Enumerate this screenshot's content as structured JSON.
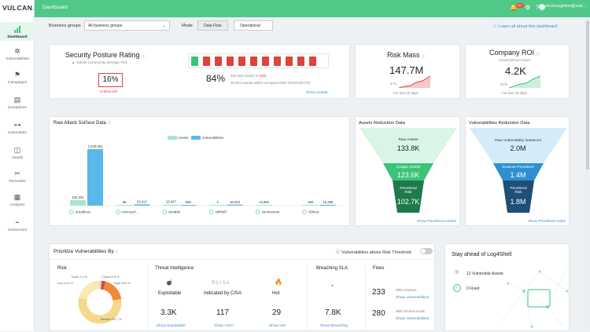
{
  "app": {
    "logo_main": "VULCAN",
    "logo_dot": ".",
    "page": "Dashboard",
    "user": "kevin.broughton@vulc...",
    "notif_count": "99+"
  },
  "sidebar": {
    "items": [
      {
        "label": "Dashboard",
        "icon": "bar-chart-icon"
      },
      {
        "label": "Vulnerabilities",
        "icon": "bug-icon"
      },
      {
        "label": "Campaigns",
        "icon": "flag-icon"
      },
      {
        "label": "Exceptions",
        "icon": "clipboard-icon"
      },
      {
        "label": "Automation",
        "icon": "flow-icon"
      },
      {
        "label": "Assets",
        "icon": "box-icon"
      },
      {
        "label": "Remedies",
        "icon": "tools-icon"
      },
      {
        "label": "Analytics",
        "icon": "document-chart-icon"
      },
      {
        "label": "Connectors",
        "icon": "plug-icon"
      }
    ]
  },
  "filters": {
    "business_groups_label": "Business groups",
    "business_groups_value": "All business groups",
    "mode_label": "Mode",
    "mode_options": [
      "Data Flow",
      "Operational"
    ],
    "learn_link": "Learn all about this dashboard"
  },
  "posture": {
    "title": "Security Posture Rating",
    "community": "Vulcan Community average 76%",
    "score": "16%",
    "score_label": "Critical risk",
    "percent": "84%",
    "at_risk": "102,683 Assets in",
    "at_risk_tag": "Risk",
    "accepted": "20,924 Assets within Accepted Risk Threshold (70)",
    "show_assets": "Show Assets"
  },
  "risk_mass": {
    "title": "Risk Mass",
    "value": "147.7M",
    "delta": "5 %",
    "period": "For last 30 days"
  },
  "roi": {
    "title": "Company ROI",
    "subtitle": "Saved person hours",
    "value": "4.2K",
    "delta": "67%",
    "period": "For last 30 days"
  },
  "chart_title": "Raw Attack Surface Data",
  "chart_data": {
    "type": "bar",
    "categories": [
      "tenablesc",
      "microsof...",
      "tenable",
      "shiftleft",
      "servicenow",
      "Others"
    ],
    "series": [
      {
        "name": "Assets",
        "color": "#a8e6c8",
        "values": [
          102231,
          58,
          18347,
          3,
          12862,
          600
        ]
      },
      {
        "name": "Vulnerabilities",
        "color": "#5ab9ea",
        "values": [
          1043004,
          23413,
          665,
          18043,
          0,
          16368
        ]
      }
    ],
    "value_labels": {
      "Assets": [
        "102,231",
        "58",
        "18,347",
        "3",
        "12,862",
        "600"
      ],
      "Vulnerabilities": [
        "1,043,004",
        "23,413",
        "665",
        "18,043",
        "",
        "16,368"
      ]
    }
  },
  "assets_funnel": {
    "title": "Assets Reduction Data",
    "levels": [
      {
        "label": "Raw Assets",
        "value": "133.8K"
      },
      {
        "label": "Unique Assets",
        "value": "123.6K"
      },
      {
        "label": "Prioritized Risk",
        "value": "102.7K"
      }
    ],
    "link": "Show Prioritized Assets"
  },
  "vuln_funnel": {
    "title": "Vulnerabilities Reduction Data",
    "levels": [
      {
        "label": "Raw Vulnerability Instances",
        "value": "2.0M"
      },
      {
        "label": "Scanner Prioritized",
        "value": "1.4M"
      },
      {
        "label": "Prioritized Risk",
        "value": "1.8M"
      }
    ],
    "link": "Show Prioritized Vulns"
  },
  "prioritize": {
    "title": "Prioritize Vulnerabilities By",
    "threshold": "Vulnerabilities above Risk Threshold",
    "risk_title": "Risk",
    "donut_labels": [
      "None 1.4 %",
      "Critical 2.8 %",
      "Low 21.6 %",
      "High 18.5 %",
      "Medium 55.7 %"
    ],
    "donut_values": [
      1.4,
      2.8,
      18.5,
      55.7,
      21.6
    ],
    "ti_title": "Threat Intelligence",
    "ti_items": [
      {
        "label": "Exploitable",
        "value": "3.3K",
        "link": "Show Exploitable"
      },
      {
        "label": "Indicated by CISA",
        "value": "117",
        "link": "Show CISA"
      },
      {
        "label": "Hot",
        "value": "29",
        "link": "Show Hot"
      }
    ],
    "cisa_logo": "CISA",
    "sla_title": "Breaching SLA",
    "sla_value": "7.8K",
    "sla_link": "Show Breaching",
    "fixes_title": "Fixes",
    "fixes": [
      {
        "value": "233",
        "label": "With Patches",
        "link": "Show vulnerabilities"
      },
      {
        "value": "280",
        "label": "With Workarounds",
        "link": "Show vulnerabilities"
      }
    ]
  },
  "log4shell": {
    "title": "Stay ahead of Log4Shell",
    "vulnerable": "12 Vulnerable Assets",
    "fixed": "0 Fixed"
  }
}
